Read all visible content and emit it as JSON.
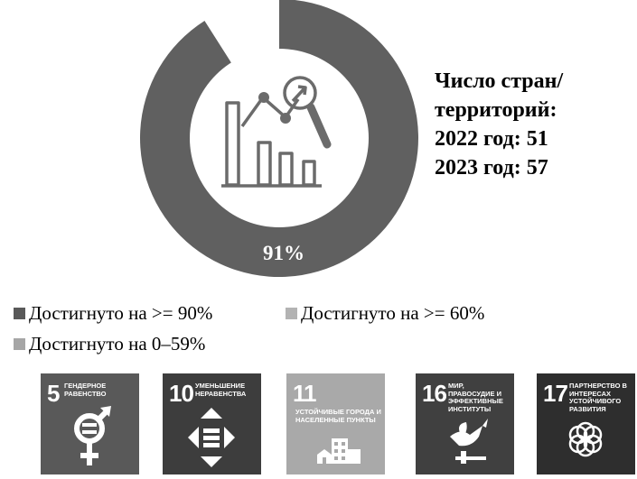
{
  "chart_data": {
    "type": "pie",
    "style": "donut",
    "slices": [
      {
        "label": "Достигнуто на >= 90%",
        "value": 91,
        "color": "#606060"
      },
      {
        "label": "Достигнуто на >= 60%",
        "value": 0,
        "color": "#b0b0b0"
      },
      {
        "label": "Достигнуто на 0–59%",
        "value": 9,
        "color": "#9a9a9a"
      }
    ],
    "center_label": "91%",
    "legend_position": "bottom-left"
  },
  "stats": {
    "line1": "Число стран/",
    "line2": "территорий:",
    "line3": "2022 год: 51",
    "line4": "2023 год: 57"
  },
  "legend": [
    {
      "label": "Достигнуто на >= 90%",
      "color": "#595959"
    },
    {
      "label": "Достигнуто на >= 60%",
      "color": "#b3b3b3"
    },
    {
      "label": "Достигнуто на 0–59%",
      "color": "#a6a6a6"
    }
  ],
  "center_icon": "analytics-chart-magnifier-icon",
  "sdg_tiles": [
    {
      "number": "5",
      "title": "ГЕНДЕРНОЕ РАВЕНСТВО",
      "icon": "gender-equality-icon",
      "color": "#595959"
    },
    {
      "number": "10",
      "title": "УМЕНЬШЕНИЕ НЕРАВЕНСТВА",
      "icon": "reduced-inequality-icon",
      "color": "#3d3d3d"
    },
    {
      "number": "11",
      "title": "УСТОЙЧИВЫЕ ГОРОДА И НАСЕЛЕННЫЕ ПУНКТЫ",
      "icon": "sustainable-cities-icon",
      "color": "#a9a9a9"
    },
    {
      "number": "16",
      "title": "МИР, ПРАВОСУДИЕ И ЭФФЕКТИВНЫЕ ИНСТИТУТЫ",
      "icon": "peace-justice-icon",
      "color": "#404040"
    },
    {
      "number": "17",
      "title": "ПАРТНЕРСТВО В ИНТЕРЕСАХ УСТОЙЧИВОГО РАЗВИТИЯ",
      "icon": "partnerships-icon",
      "color": "#2e2e2e"
    }
  ]
}
